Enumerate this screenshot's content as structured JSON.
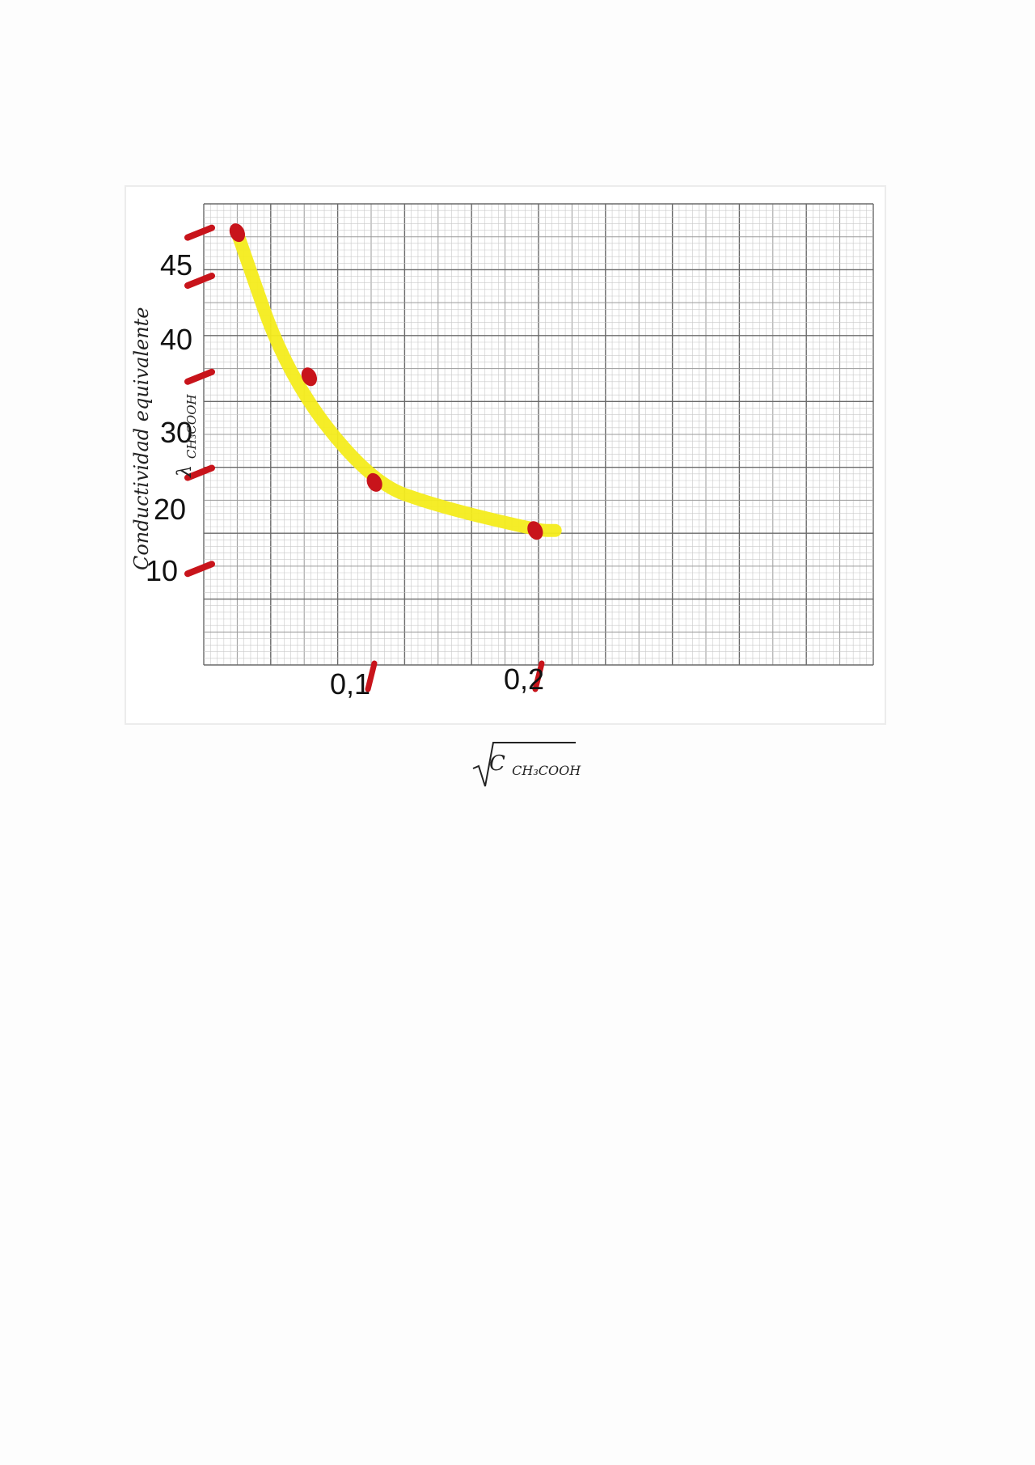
{
  "chart_data": {
    "type": "line",
    "title": "",
    "ylabel": "Conductividad equivalente",
    "ylabel_symbol": "λ",
    "ylabel_symbol_sub": "CH₃COOH",
    "xlabel": "C",
    "xlabel_sub": "CH₃COOH",
    "xlabel_note": "square root of concentration",
    "x_tick_labels": [
      "0,1",
      "0,2"
    ],
    "x_ticks": [
      0.1,
      0.2
    ],
    "y_tick_labels": [
      "45",
      "40",
      "30",
      "20",
      "10"
    ],
    "y_ticks": [
      45,
      40,
      30,
      20,
      10
    ],
    "xlim": [
      0,
      0.4
    ],
    "ylim": [
      0,
      48
    ],
    "grid": true,
    "series": [
      {
        "curve_points": [
          {
            "x": 0.02,
            "y": 45
          },
          {
            "x": 0.05,
            "y": 30
          },
          {
            "x": 0.1,
            "y": 19
          },
          {
            "x": 0.14,
            "y": 16.5
          },
          {
            "x": 0.2,
            "y": 14
          },
          {
            "x": 0.21,
            "y": 14
          }
        ],
        "marked_points": [
          {
            "x": 0.02,
            "y": 45
          },
          {
            "x": 0.063,
            "y": 30
          },
          {
            "x": 0.102,
            "y": 19
          },
          {
            "x": 0.198,
            "y": 14
          }
        ]
      }
    ],
    "colors": {
      "curve": "#f4ec1c",
      "marks": "#c8141b",
      "grid_minor": "#c9c9c9",
      "grid_major": "#6a6a6a",
      "frame_bg": "#ffffff"
    }
  }
}
